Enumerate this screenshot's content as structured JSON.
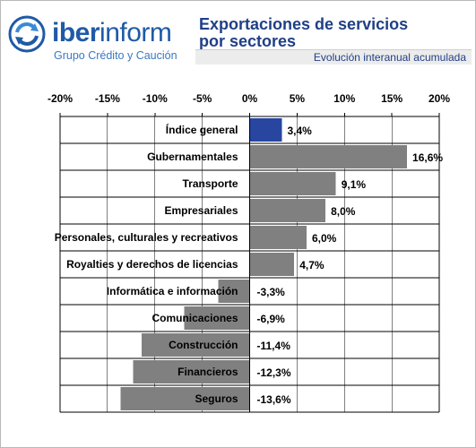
{
  "header": {
    "brand_bold": "iber",
    "brand_light": "inform",
    "brand_tagline": "Grupo Crédito y Caución",
    "logo_icon": "circular-arrows-icon",
    "title_line1": "Exportaciones de servicios",
    "title_line2": "por sectores",
    "subtitle": "Evolución interanual acumulada"
  },
  "chart_data": {
    "type": "bar",
    "orientation": "horizontal",
    "title": "Exportaciones de servicios por sectores",
    "subtitle": "Evolución interanual acumulada",
    "categories": [
      "Índice general",
      "Gubernamentales",
      "Transporte",
      "Empresariales",
      "Personales, culturales y recreativos",
      "Royalties y derechos de licencias",
      "Informática e información",
      "Comunicaciones",
      "Construcción",
      "Financieros",
      "Seguros"
    ],
    "values": [
      3.4,
      16.6,
      9.1,
      8.0,
      6.0,
      4.7,
      -3.3,
      -6.9,
      -11.4,
      -12.3,
      -13.6
    ],
    "value_labels": [
      "3,4%",
      "16,6%",
      "9,1%",
      "8,0%",
      "6,0%",
      "4,7%",
      "-3,3%",
      "-6,9%",
      "-11,4%",
      "-12,3%",
      "-13,6%"
    ],
    "xlim": [
      -20,
      20
    ],
    "xticks": [
      -20,
      -15,
      -10,
      -5,
      0,
      5,
      10,
      15,
      20
    ],
    "xtick_labels": [
      "-20%",
      "-15%",
      "-10%",
      "-5%",
      "0%",
      "5%",
      "10%",
      "15%",
      "20%"
    ],
    "tick_position": "top",
    "grid": true,
    "legend": "none",
    "colors": {
      "highlight": "#2846a0",
      "bar": "#808080",
      "grid": "#000000",
      "text": "#000000"
    },
    "highlight_index": 0
  }
}
